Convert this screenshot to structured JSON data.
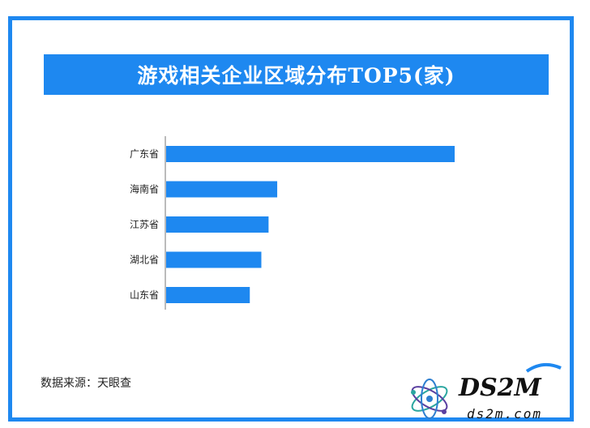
{
  "chart_data": {
    "type": "bar",
    "orientation": "horizontal",
    "title": "游戏相关企业区域分布TOP5(家)",
    "categories": [
      "广东省",
      "海南省",
      "江苏省",
      "湖北省",
      "山东省"
    ],
    "values": [
      100,
      38.5,
      35.5,
      33,
      29
    ],
    "xlim": [
      0,
      100
    ],
    "grid": false,
    "legend": "none",
    "bar_color": "#1e88f0",
    "axis_color": "#bbbbbb"
  },
  "source": "数据来源：天眼查",
  "logo": {
    "brand": "DS2M",
    "domain": "ds2m.com"
  }
}
